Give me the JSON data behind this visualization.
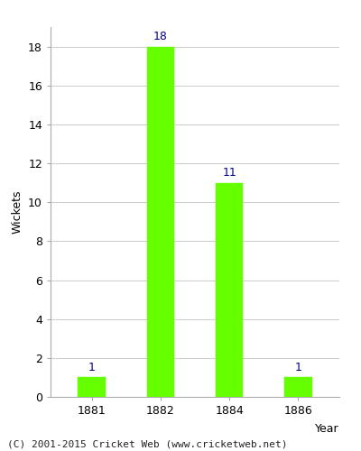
{
  "categories": [
    "1881",
    "1882",
    "1884",
    "1886"
  ],
  "values": [
    1,
    18,
    11,
    1
  ],
  "bar_color": "#66ff00",
  "bar_edge_color": "#66ff00",
  "label_color": "#00008B",
  "xlabel": "Year",
  "ylabel": "Wickets",
  "ylim": [
    0,
    19
  ],
  "yticks": [
    0,
    2,
    4,
    6,
    8,
    10,
    12,
    14,
    16,
    18
  ],
  "footer": "(C) 2001-2015 Cricket Web (www.cricketweb.net)",
  "bar_width": 0.4,
  "label_fontsize": 9,
  "axis_label_fontsize": 9,
  "tick_fontsize": 9,
  "footer_fontsize": 8,
  "background_color": "#ffffff",
  "grid_color": "#cccccc",
  "spine_color": "#aaaaaa"
}
